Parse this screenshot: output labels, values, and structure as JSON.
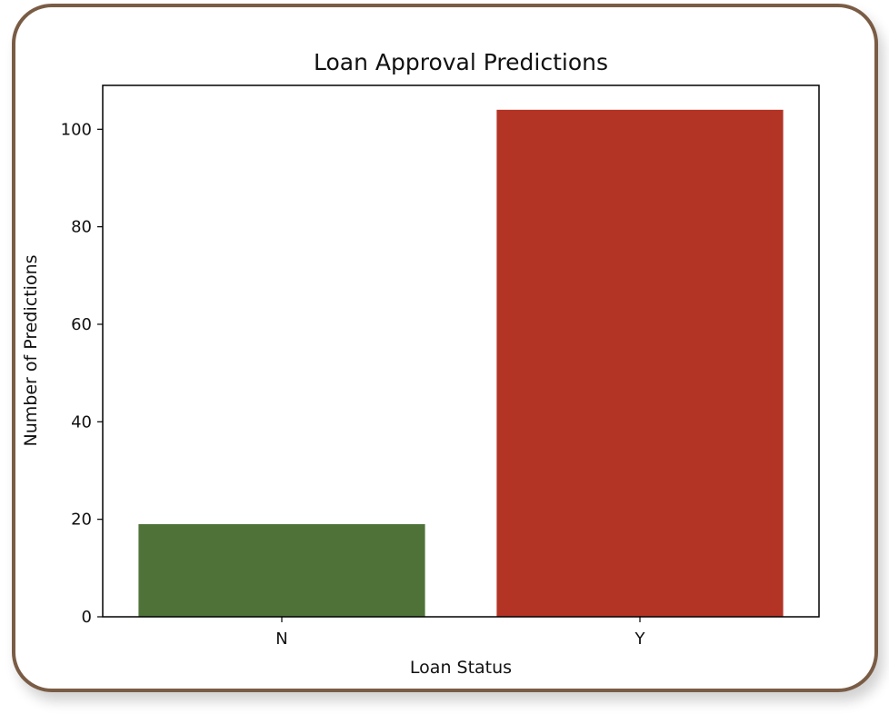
{
  "colors": {
    "frame_border": "#7a5c45",
    "bar_N": "#4f7239",
    "bar_Y": "#b33324"
  },
  "chart_data": {
    "type": "bar",
    "title": "Loan Approval Predictions",
    "xlabel": "Loan Status",
    "ylabel": "Number of Predictions",
    "categories": [
      "N",
      "Y"
    ],
    "values": [
      19,
      104
    ],
    "ylim": [
      0,
      109
    ],
    "yticks": [
      0,
      20,
      40,
      60,
      80,
      100
    ],
    "grid": false,
    "legend": "none"
  }
}
